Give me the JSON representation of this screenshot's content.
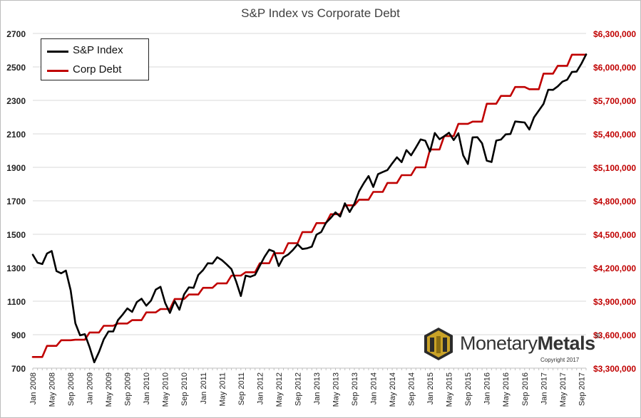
{
  "chart_data": {
    "type": "line",
    "title": "S&P Index vs Corporate Debt",
    "legend_position": "top-left",
    "grid": true,
    "y_left": {
      "ticks": [
        "2700",
        "2500",
        "2300",
        "2100",
        "1900",
        "1700",
        "1500",
        "1300",
        "1100",
        "900",
        "700"
      ],
      "range": [
        700,
        2700
      ]
    },
    "y_right": {
      "ticks": [
        "$6,300,000",
        "$6,000,000",
        "$5,700,000",
        "$5,400,000",
        "$5,100,000",
        "$4,800,000",
        "$4,500,000",
        "$4,200,000",
        "$3,900,000",
        "$3,600,000",
        "$3,300,000"
      ],
      "range": [
        3300000,
        6300000
      ]
    },
    "x_ticks": [
      "Jan 2008",
      "May 2008",
      "Sep 2008",
      "Jan 2009",
      "May 2009",
      "Sep 2009",
      "Jan 2010",
      "May 2010",
      "Sep 2010",
      "Jan 2011",
      "May 2011",
      "Sep 2011",
      "Jan 2012",
      "May 2012",
      "Sep 2012",
      "Jan 2013",
      "May 2013",
      "Sep 2013",
      "Jan 2014",
      "May 2014",
      "Sep 2014",
      "Jan 2015",
      "May 2015",
      "Sep 2015",
      "Jan 2016",
      "May 2016",
      "Sep 2016",
      "Jan 2017",
      "May 2017",
      "Sep 2017"
    ],
    "x_months": {
      "start": "Jan 2008",
      "end": "Oct 2017"
    },
    "series": [
      {
        "name": "S&P Index",
        "axis": "left",
        "color": "#000000",
        "values": [
          1378,
          1330,
          1322,
          1385,
          1400,
          1280,
          1267,
          1283,
          1165,
          968,
          896,
          903,
          826,
          735,
          797,
          872,
          919,
          919,
          987,
          1020,
          1057,
          1036,
          1095,
          1115,
          1073,
          1104,
          1169,
          1186,
          1089,
          1030,
          1101,
          1049,
          1141,
          1183,
          1180,
          1257,
          1286,
          1327,
          1325,
          1363,
          1345,
          1320,
          1292,
          1218,
          1131,
          1253,
          1246,
          1257,
          1312,
          1365,
          1408,
          1397,
          1310,
          1362,
          1379,
          1406,
          1440,
          1412,
          1416,
          1426,
          1498,
          1514,
          1569,
          1597,
          1631,
          1606,
          1685,
          1633,
          1682,
          1757,
          1806,
          1848,
          1783,
          1859,
          1872,
          1884,
          1924,
          1960,
          1931,
          2003,
          1972,
          2018,
          2067,
          2059,
          1995,
          2105,
          2068,
          2086,
          2107,
          2063,
          2104,
          1972,
          1920,
          2079,
          2080,
          2044,
          1940,
          1932,
          2060,
          2066,
          2097,
          2099,
          2174,
          2171,
          2168,
          2126,
          2199,
          2239,
          2279,
          2364,
          2363,
          2384,
          2412,
          2424,
          2470,
          2472,
          2519,
          2575
        ]
      },
      {
        "name": "Corp Debt",
        "axis": "right",
        "color": "#c00000",
        "values": [
          3400000,
          3400000,
          3400000,
          3500000,
          3500000,
          3500000,
          3550000,
          3550000,
          3550000,
          3555000,
          3555000,
          3555000,
          3620000,
          3620000,
          3620000,
          3680000,
          3680000,
          3680000,
          3700000,
          3700000,
          3700000,
          3730000,
          3730000,
          3730000,
          3800000,
          3800000,
          3800000,
          3830000,
          3830000,
          3830000,
          3920000,
          3920000,
          3920000,
          3960000,
          3960000,
          3960000,
          4020000,
          4020000,
          4020000,
          4060000,
          4060000,
          4060000,
          4130000,
          4130000,
          4130000,
          4160000,
          4160000,
          4160000,
          4240000,
          4240000,
          4240000,
          4330000,
          4330000,
          4330000,
          4420000,
          4420000,
          4420000,
          4520000,
          4520000,
          4520000,
          4600000,
          4600000,
          4600000,
          4680000,
          4680000,
          4680000,
          4760000,
          4760000,
          4760000,
          4810000,
          4810000,
          4810000,
          4880000,
          4880000,
          4880000,
          4960000,
          4960000,
          4960000,
          5030000,
          5030000,
          5030000,
          5100000,
          5100000,
          5100000,
          5260000,
          5260000,
          5260000,
          5380000,
          5380000,
          5380000,
          5490000,
          5490000,
          5490000,
          5510000,
          5510000,
          5510000,
          5670000,
          5670000,
          5670000,
          5740000,
          5740000,
          5740000,
          5820000,
          5820000,
          5820000,
          5800000,
          5800000,
          5800000,
          5940000,
          5940000,
          5940000,
          6010000,
          6010000,
          6010000,
          6110000,
          6110000,
          6110000,
          6110000
        ]
      }
    ]
  },
  "logo": {
    "brand_part1": "Monetary",
    "brand_part2": "Metals",
    "registered_mark": "®",
    "copyright": "Copyright 2017",
    "colors": {
      "gold": "#c9a227",
      "dark": "#2b2b2b"
    }
  }
}
